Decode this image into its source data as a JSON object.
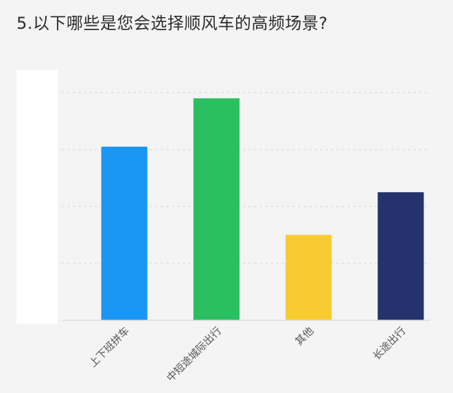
{
  "title": "5.以下哪些是您会选择顺风车的高频场景?",
  "chart_data": {
    "type": "bar",
    "categories": [
      "上下班拼车",
      "中短途城际出行",
      "其他",
      "长途出行"
    ],
    "values": [
      61,
      78,
      30,
      45
    ],
    "colors": [
      "#1a96f5",
      "#2bbf62",
      "#f8cb30",
      "#24336e"
    ],
    "ylim": [
      0,
      100
    ],
    "grid": true,
    "gridline_values": [
      20,
      40,
      60,
      80
    ],
    "xlabel": "",
    "ylabel": ""
  }
}
